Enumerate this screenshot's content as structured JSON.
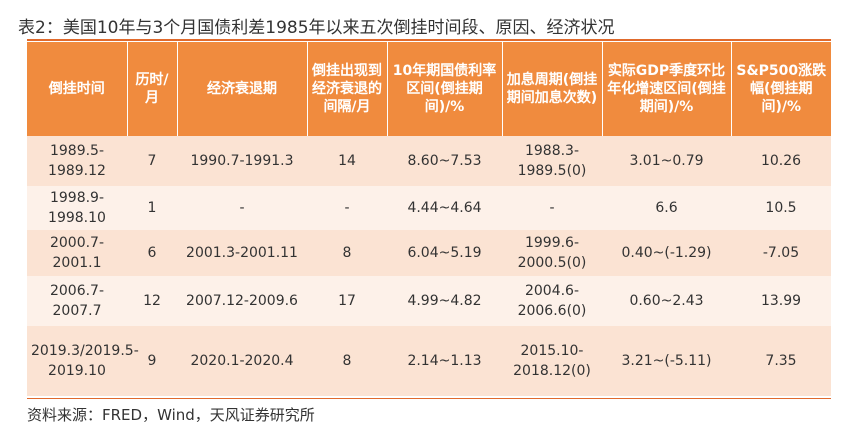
{
  "title": "表2：美国10年与3个月国债利差1985年以来五次倒挂时间段、原因、经济状况",
  "headers": [
    "倒挂时间",
    "历时/月",
    "经济衰退期",
    "倒挂出现到经济衰退的间隔/月",
    "10年期国债利率区间(倒挂期间)/%",
    "加息周期(倒挂期间加息次数)",
    "实际GDP季度环比年化增速区间(倒挂期间)/%",
    "S&P500涨跌幅(倒挂期间)/%"
  ],
  "rows": [
    [
      "1989.5-1989.12",
      "7",
      "1990.7-1991.3",
      "14",
      "8.60~7.53",
      "1988.3-1989.5(0)",
      "3.01~0.79",
      "10.26"
    ],
    [
      "1998.9-1998.10",
      "1",
      "-",
      "-",
      "4.44~4.64",
      "-",
      "6.6",
      "10.5"
    ],
    [
      "2000.7-2001.1",
      "6",
      "2001.3-2001.11",
      "8",
      "6.04~5.19",
      "1999.6-2000.5(0)",
      "0.40~(-1.29)",
      "-7.05"
    ],
    [
      "2006.7-2007.7",
      "12",
      "2007.12-2009.6",
      "17",
      "4.99~4.82",
      "2004.6-2006.6(0)",
      "0.60~2.43",
      "13.99"
    ],
    [
      "2019.3/2019.5-2019.10",
      "9",
      "2020.1-2020.4",
      "8",
      "2.14~1.13",
      "2015.10-2018.12(0)",
      "3.21~(-5.11)",
      "7.35"
    ]
  ],
  "source": "资料来源：FRED，Wind，天风证券研究所",
  "colors": {
    "header_bg": "#f08b3e",
    "row_odd": "#fbe3d3",
    "row_even": "#fdf1e9",
    "rule": "#e06a2c"
  }
}
